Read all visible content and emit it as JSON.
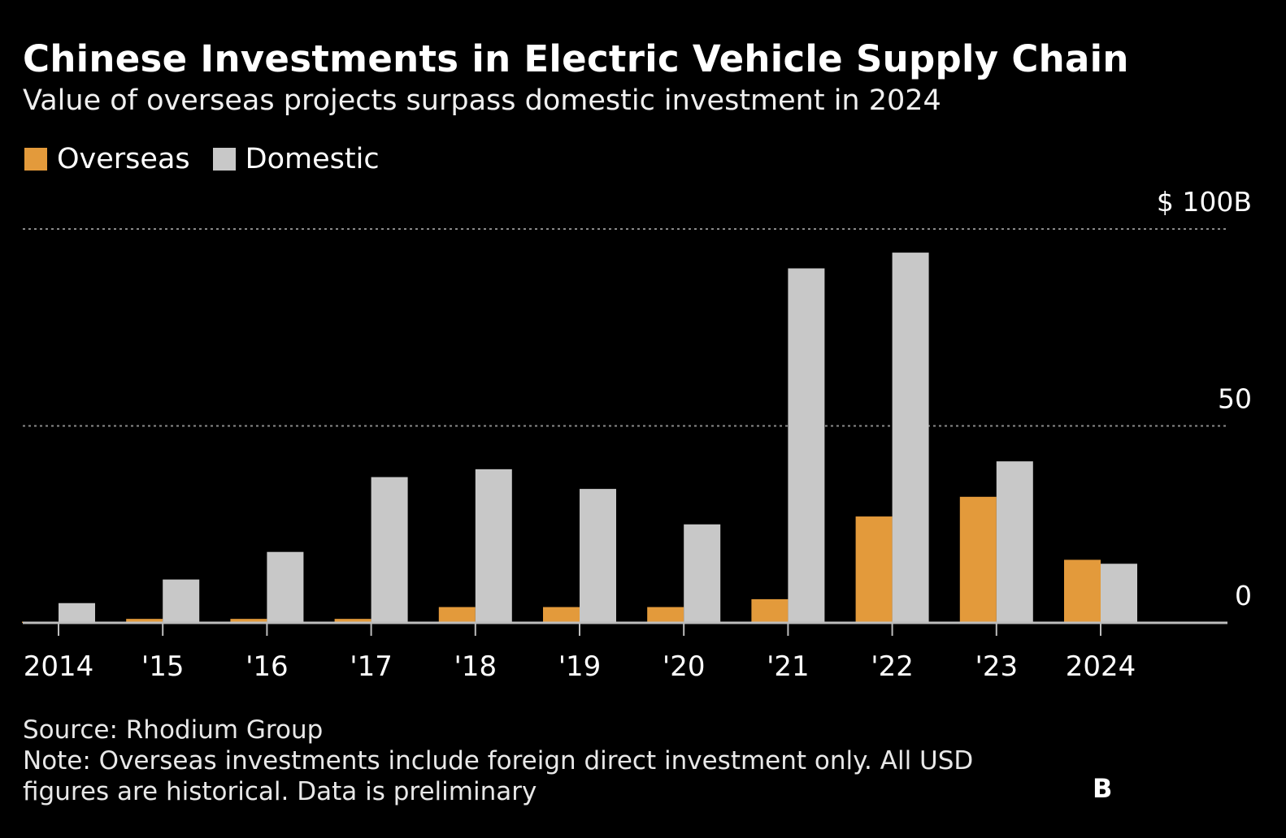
{
  "title": "Chinese Investments in Electric Vehicle Supply Chain",
  "subtitle": "Value of overseas projects surpass domestic investment in 2024",
  "colors": {
    "overseas": "#e39a3b",
    "domestic": "#c8c8c8",
    "background": "#000000",
    "grid": "#8a8a8a",
    "axis": "#bdbdbd"
  },
  "footer": {
    "source": "Source: Rhodium Group",
    "note_line1": "Note: Overseas investments include foreign direct investment only. All USD",
    "note_line2": "figures are historical. Data is preliminary"
  },
  "logo": "B",
  "chart_data": {
    "type": "bar",
    "categories": [
      "2014",
      "'15",
      "'16",
      "'17",
      "'18",
      "'19",
      "'20",
      "'21",
      "'22",
      "'23",
      "2024"
    ],
    "series": [
      {
        "name": "Overseas",
        "values": [
          0.3,
          1,
          1,
          1,
          4,
          4,
          4,
          6,
          27,
          32,
          16
        ]
      },
      {
        "name": "Domestic",
        "values": [
          5,
          11,
          18,
          37,
          39,
          34,
          25,
          90,
          94,
          41,
          15
        ]
      }
    ],
    "y_ticks": [
      {
        "value": 0,
        "label": "0"
      },
      {
        "value": 50,
        "label": "50"
      },
      {
        "value": 100,
        "label": "$ 100B"
      }
    ],
    "ylim": [
      0,
      100
    ],
    "grid": true,
    "legend": "top-left"
  }
}
